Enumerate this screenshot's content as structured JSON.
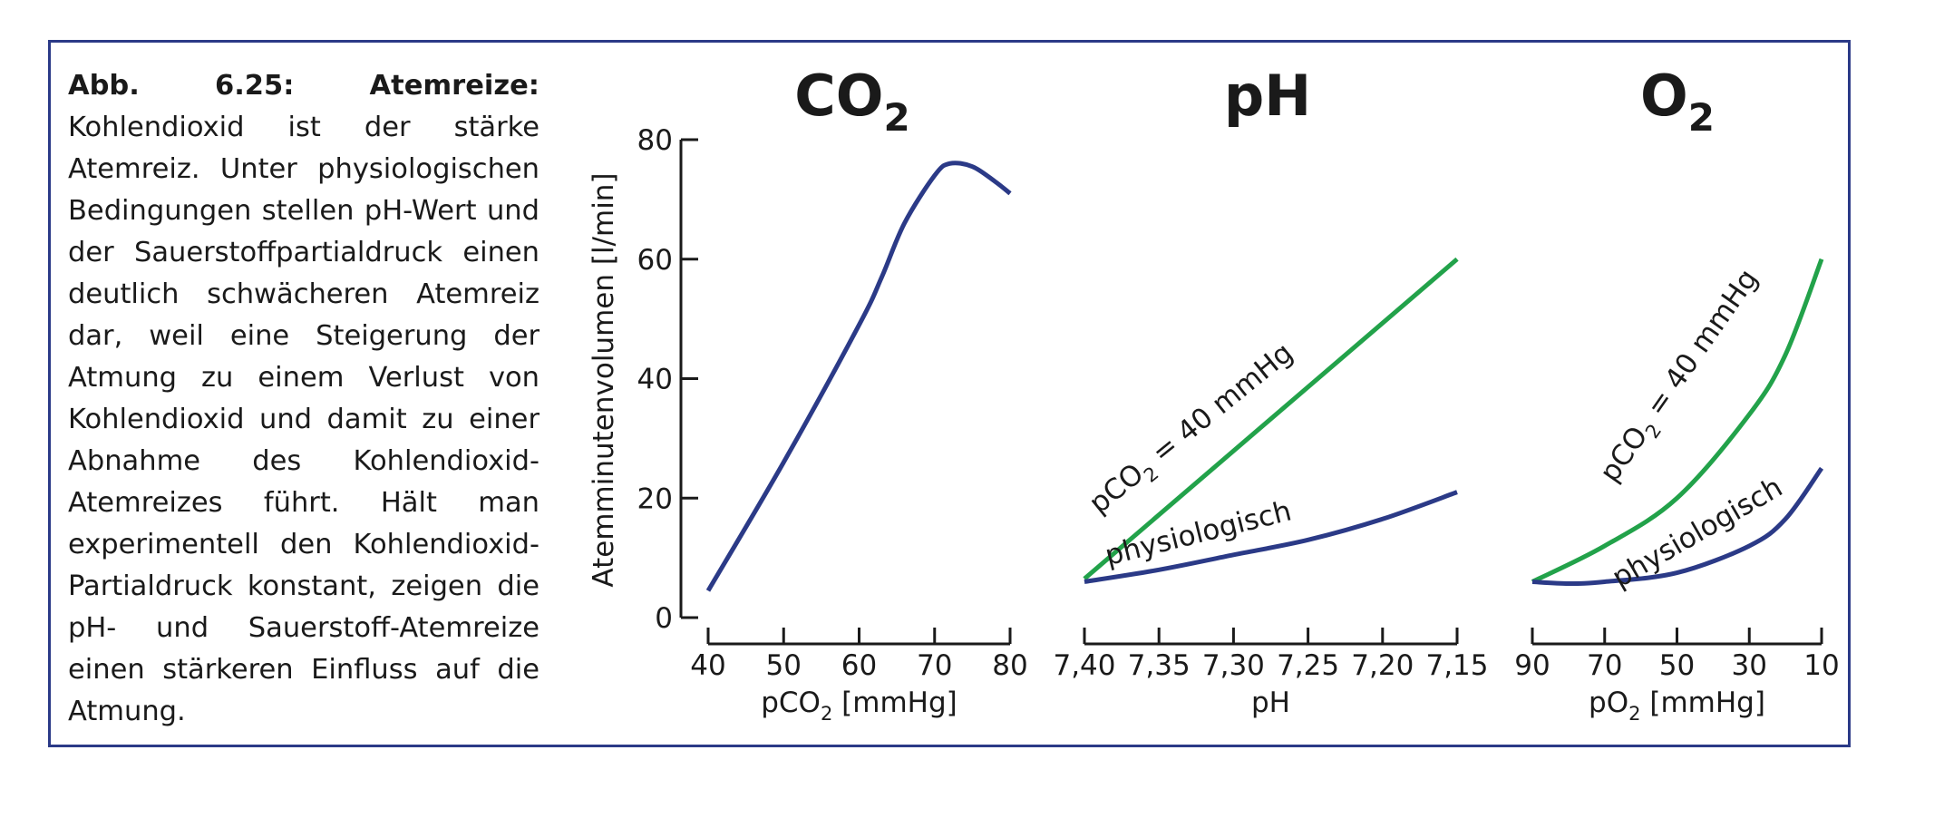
{
  "caption": {
    "label": "Abb. 6.25: Atemreize:",
    "text": "Kohlendioxid ist der stärke Atemreiz. Unter physiologischen Bedingungen stellen pH-Wert und der Sauerstoffpartialdruck einen deutlich schwächeren Atemreiz dar, weil eine Steigerung der Atmung zu einem Verlust von Kohlendioxid und damit zu einer Abnahme des Kohlendioxid-Atemreizes führt. Hält man experimentell den Kohlendioxid-Partialdruck konstant, zeigen die pH- und Sauerstoff-Atemreize einen stärkeren Einfluss auf die Atmung."
  },
  "colors": {
    "navy": "#2b3a87",
    "green": "#22a24a",
    "frame": "#2b3a87"
  },
  "chart_data": [
    {
      "type": "line",
      "title": "CO2",
      "ylabel": "Atemminutenvolumen [l/min]",
      "yticks": [
        "0",
        "20",
        "40",
        "60",
        "80"
      ],
      "ylim": [
        0,
        80
      ],
      "xlabel": "pCO2 [mmHg]",
      "xticks": [
        "40",
        "50",
        "60",
        "70",
        "80"
      ],
      "xlim": [
        40,
        80
      ],
      "series": [
        {
          "color": "#2b3a87",
          "x": [
            40,
            50,
            60,
            63,
            66,
            70,
            72,
            75,
            78,
            80
          ],
          "y": [
            4.5,
            26,
            49,
            57,
            66,
            74,
            76,
            75.5,
            73,
            71
          ]
        }
      ]
    },
    {
      "type": "line",
      "title": "pH",
      "xlabel": "pH",
      "xticks": [
        "7,40",
        "7,35",
        "7,30",
        "7,25",
        "7,20",
        "7,15"
      ],
      "xlim": [
        7.4,
        7.15
      ],
      "series": [
        {
          "name": "pCO2 = 40 mmHg",
          "color": "#22a24a",
          "x": [
            7.4,
            7.15
          ],
          "y": [
            6.5,
            60
          ]
        },
        {
          "name": "physiologisch",
          "color": "#2b3a87",
          "x": [
            7.4,
            7.35,
            7.3,
            7.25,
            7.2,
            7.15
          ],
          "y": [
            6,
            8,
            10.5,
            13,
            16.5,
            21
          ]
        }
      ]
    },
    {
      "type": "line",
      "title": "O2",
      "xlabel": "pO2 [mmHg]",
      "xticks": [
        "90",
        "70",
        "50",
        "30",
        "10"
      ],
      "xlim": [
        90,
        10
      ],
      "series": [
        {
          "name": "pCO2 = 40 mmHg",
          "color": "#22a24a",
          "x": [
            90,
            70,
            50,
            30,
            20,
            10
          ],
          "y": [
            6,
            12,
            20,
            34,
            44,
            60
          ]
        },
        {
          "name": "physiologisch",
          "color": "#2b3a87",
          "x": [
            90,
            80,
            70,
            50,
            30,
            20,
            10
          ],
          "y": [
            6,
            5.7,
            6,
            7.5,
            12,
            16.5,
            25
          ]
        }
      ]
    }
  ]
}
